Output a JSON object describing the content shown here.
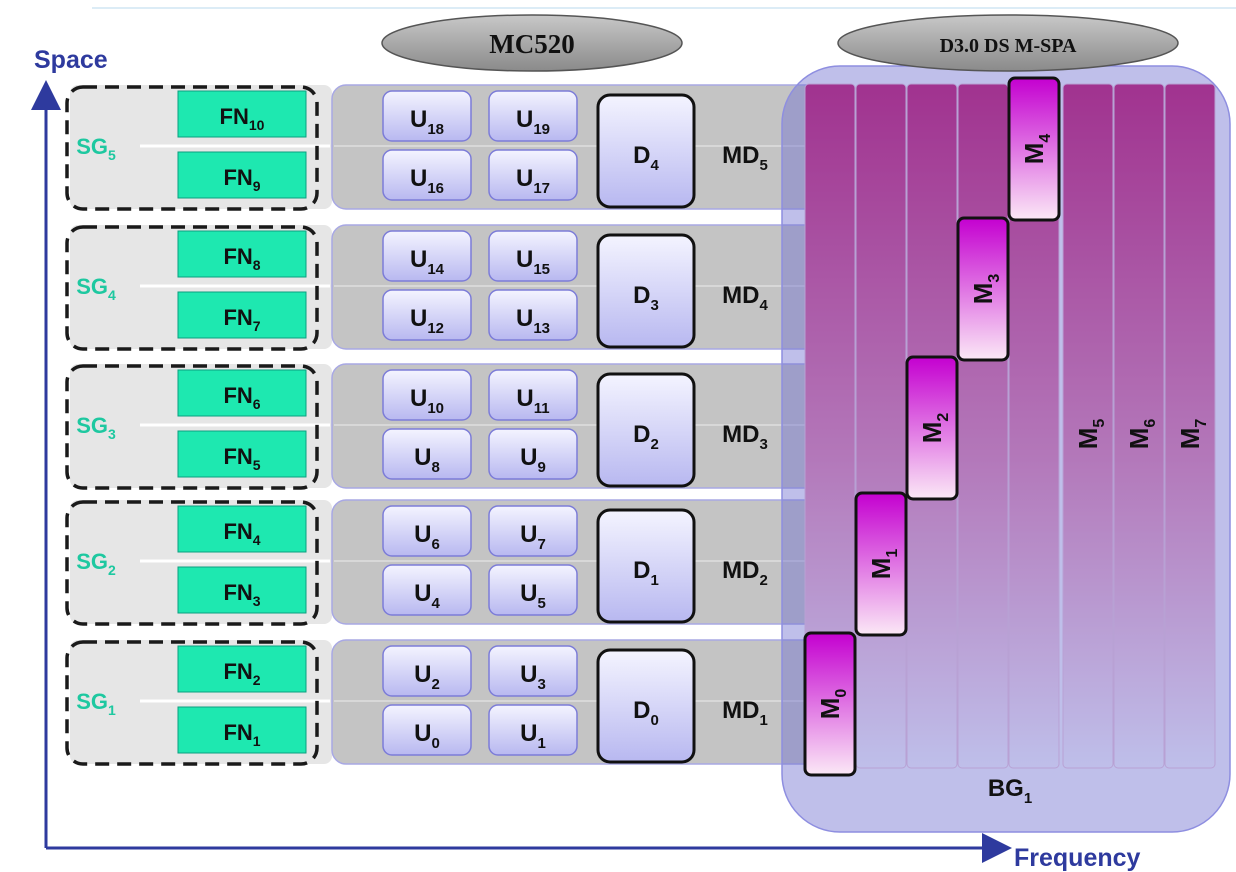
{
  "axes": {
    "y_label": "Space",
    "x_label": "Frequency"
  },
  "headers": {
    "left": "MC520",
    "right": "D3.0 DS M-SPA"
  },
  "service_groups": [
    {
      "base": "SG",
      "sub": "1"
    },
    {
      "base": "SG",
      "sub": "2"
    },
    {
      "base": "SG",
      "sub": "3"
    },
    {
      "base": "SG",
      "sub": "4"
    },
    {
      "base": "SG",
      "sub": "5"
    }
  ],
  "fiber_nodes": [
    {
      "base": "FN",
      "sub": "1"
    },
    {
      "base": "FN",
      "sub": "2"
    },
    {
      "base": "FN",
      "sub": "3"
    },
    {
      "base": "FN",
      "sub": "4"
    },
    {
      "base": "FN",
      "sub": "5"
    },
    {
      "base": "FN",
      "sub": "6"
    },
    {
      "base": "FN",
      "sub": "7"
    },
    {
      "base": "FN",
      "sub": "8"
    },
    {
      "base": "FN",
      "sub": "9"
    },
    {
      "base": "FN",
      "sub": "10"
    }
  ],
  "u_channels": [
    {
      "base": "U",
      "sub": "0"
    },
    {
      "base": "U",
      "sub": "1"
    },
    {
      "base": "U",
      "sub": "2"
    },
    {
      "base": "U",
      "sub": "3"
    },
    {
      "base": "U",
      "sub": "4"
    },
    {
      "base": "U",
      "sub": "5"
    },
    {
      "base": "U",
      "sub": "6"
    },
    {
      "base": "U",
      "sub": "7"
    },
    {
      "base": "U",
      "sub": "8"
    },
    {
      "base": "U",
      "sub": "9"
    },
    {
      "base": "U",
      "sub": "10"
    },
    {
      "base": "U",
      "sub": "11"
    },
    {
      "base": "U",
      "sub": "12"
    },
    {
      "base": "U",
      "sub": "13"
    },
    {
      "base": "U",
      "sub": "14"
    },
    {
      "base": "U",
      "sub": "15"
    },
    {
      "base": "U",
      "sub": "16"
    },
    {
      "base": "U",
      "sub": "17"
    },
    {
      "base": "U",
      "sub": "18"
    },
    {
      "base": "U",
      "sub": "19"
    }
  ],
  "d_channels": [
    {
      "base": "D",
      "sub": "0"
    },
    {
      "base": "D",
      "sub": "1"
    },
    {
      "base": "D",
      "sub": "2"
    },
    {
      "base": "D",
      "sub": "3"
    },
    {
      "base": "D",
      "sub": "4"
    }
  ],
  "md_domains": [
    {
      "base": "MD",
      "sub": "1"
    },
    {
      "base": "MD",
      "sub": "2"
    },
    {
      "base": "MD",
      "sub": "3"
    },
    {
      "base": "MD",
      "sub": "4"
    },
    {
      "base": "MD",
      "sub": "5"
    }
  ],
  "m_channels": [
    {
      "base": "M",
      "sub": "0"
    },
    {
      "base": "M",
      "sub": "1"
    },
    {
      "base": "M",
      "sub": "2"
    },
    {
      "base": "M",
      "sub": "3"
    },
    {
      "base": "M",
      "sub": "4"
    }
  ],
  "m_columns": [
    {
      "base": "M",
      "sub": "5"
    },
    {
      "base": "M",
      "sub": "6"
    },
    {
      "base": "M",
      "sub": "7"
    }
  ],
  "bonding_group": {
    "base": "BG",
    "sub": "1"
  },
  "colors": {
    "axis": "#2e3a9e",
    "fn_fill": "#1ee8b0",
    "sg_text": "#1ec8a0",
    "u_fill": "#c8c8f4",
    "channel_top": "#c8005a",
    "m_top": "#c000c8",
    "bg_overlay": "#7070d0"
  }
}
